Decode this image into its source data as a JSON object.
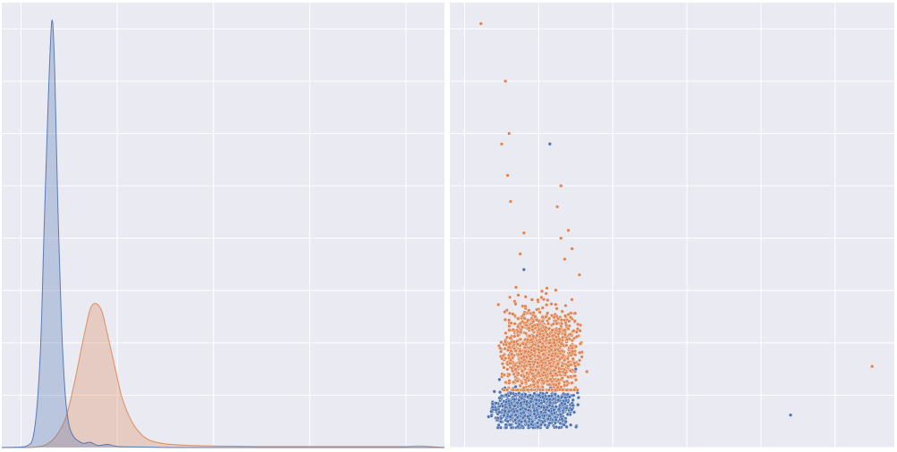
{
  "colors": {
    "background": "#eaeaf2",
    "grid": "#ffffff",
    "series_blue": "#4c72b0",
    "series_orange": "#dd8452"
  },
  "chart_data": [
    {
      "type": "area",
      "subtype": "kde",
      "title": "",
      "xlabel": "",
      "ylabel": "",
      "tick_labels_shown": false,
      "grid": true,
      "xlim": [
        -0.2,
        4.4
      ],
      "ylim": [
        0,
        8.5
      ],
      "x_gridlines": [
        0,
        1,
        2,
        3,
        4
      ],
      "y_gridlines": [
        0,
        1,
        2,
        3,
        4,
        5,
        6,
        7,
        8
      ],
      "series": [
        {
          "color": "#4c72b0",
          "x": [
            -0.2,
            0.05,
            0.14,
            0.2,
            0.24,
            0.28,
            0.32,
            0.35,
            0.38,
            0.42,
            0.46,
            0.5,
            0.55,
            0.6,
            0.65,
            0.72,
            0.8,
            0.9,
            1.0,
            1.2,
            1.6,
            2.0,
            4.4
          ],
          "y": [
            0.0,
            0.02,
            0.35,
            1.8,
            4.2,
            6.5,
            8.15,
            7.2,
            4.8,
            2.4,
            1.0,
            0.42,
            0.2,
            0.12,
            0.08,
            0.1,
            0.04,
            0.06,
            0.02,
            0.01,
            0.0,
            0.0,
            0.0
          ]
        },
        {
          "color": "#dd8452",
          "x": [
            -0.2,
            0.1,
            0.3,
            0.45,
            0.55,
            0.65,
            0.72,
            0.78,
            0.84,
            0.9,
            0.98,
            1.05,
            1.15,
            1.25,
            1.35,
            1.5,
            1.75,
            2.0,
            2.5,
            3.0,
            3.5,
            4.0,
            4.15,
            4.4
          ],
          "y": [
            0.0,
            0.0,
            0.1,
            0.5,
            1.2,
            2.1,
            2.65,
            2.75,
            2.6,
            2.15,
            1.5,
            0.95,
            0.5,
            0.25,
            0.13,
            0.07,
            0.04,
            0.03,
            0.02,
            0.02,
            0.02,
            0.02,
            0.03,
            0.0
          ]
        }
      ]
    },
    {
      "type": "scatter",
      "title": "",
      "xlabel": "",
      "ylabel": "",
      "tick_labels_shown": false,
      "grid": true,
      "xlim": [
        -0.2,
        5.8
      ],
      "ylim": [
        0,
        8.5
      ],
      "x_gridlines": [
        0,
        1,
        2,
        3,
        4,
        5
      ],
      "y_gridlines": [
        0,
        1,
        2,
        3,
        4,
        5,
        6,
        7,
        8
      ],
      "series": [
        {
          "color": "#4c72b0",
          "cluster": {
            "count": 1100,
            "x_range": [
              0.3,
              1.55
            ],
            "y_mean": 0.72,
            "y_sd": 0.18,
            "y_min": 0.38,
            "y_max": 1.3
          },
          "points": [
            [
              1.15,
              5.8
            ],
            [
              0.8,
              3.4
            ],
            [
              4.4,
              0.62
            ],
            [
              1.5,
              1.5
            ]
          ]
        },
        {
          "color": "#dd8452",
          "cluster": {
            "count": 1500,
            "x_range": [
              0.45,
              1.6
            ],
            "y_mean": 1.75,
            "y_sd": 0.45,
            "y_min": 1.1,
            "y_max": 3.4
          },
          "points": [
            [
              0.22,
              8.1
            ],
            [
              0.55,
              7.0
            ],
            [
              0.6,
              6.0
            ],
            [
              0.5,
              5.8
            ],
            [
              0.58,
              5.2
            ],
            [
              0.62,
              4.7
            ],
            [
              0.8,
              4.1
            ],
            [
              0.75,
              3.7
            ],
            [
              1.3,
              5.0
            ],
            [
              1.25,
              4.6
            ],
            [
              1.3,
              4.0
            ],
            [
              1.4,
              4.15
            ],
            [
              1.35,
              3.6
            ],
            [
              1.45,
              3.8
            ],
            [
              1.55,
              3.3
            ],
            [
              1.65,
              1.45
            ],
            [
              5.5,
              1.55
            ]
          ]
        }
      ]
    }
  ]
}
